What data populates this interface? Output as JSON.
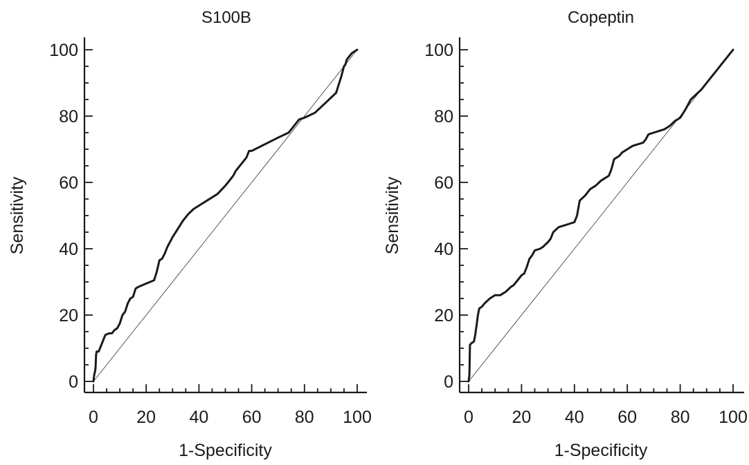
{
  "chart_data": [
    {
      "type": "line",
      "title": "S100B",
      "xlabel": "1-Specificity",
      "ylabel": "Sensitivity",
      "xlim": [
        0,
        100
      ],
      "ylim": [
        0,
        100
      ],
      "xticks": [
        0,
        20,
        40,
        60,
        80,
        100
      ],
      "yticks": [
        0,
        20,
        40,
        60,
        80,
        100
      ],
      "grid": false,
      "reference_line": [
        [
          0,
          0
        ],
        [
          100,
          100
        ]
      ],
      "series": [
        {
          "x": [
            0,
            0.3,
            0.6,
            0.8,
            1,
            1.2,
            2,
            3,
            3.5,
            4.5,
            6,
            7,
            8,
            9,
            10,
            11,
            12,
            13,
            14,
            15,
            16,
            17,
            20,
            23,
            24,
            25,
            26,
            27,
            28,
            29,
            30,
            32,
            34,
            36,
            38,
            42,
            46,
            47,
            50,
            53,
            54,
            56,
            58,
            59,
            60,
            65,
            70,
            74,
            75,
            78,
            80,
            84,
            88,
            92,
            94,
            95,
            95.5,
            96,
            97,
            98,
            99,
            100
          ],
          "y": [
            0,
            2,
            3,
            4,
            8,
            9,
            9,
            11,
            12,
            14,
            14.5,
            14.5,
            15.5,
            16,
            17.5,
            20,
            21,
            23.5,
            25,
            25.5,
            28,
            28.5,
            29.5,
            30.5,
            33,
            36.5,
            37,
            38.5,
            40.5,
            42,
            43.5,
            46,
            48.5,
            50.5,
            52,
            54,
            56,
            56.5,
            59,
            62,
            63.5,
            65.5,
            67.5,
            69.5,
            69.5,
            71.5,
            73.5,
            75,
            76,
            79,
            79.5,
            81,
            84,
            87,
            92,
            95,
            95.5,
            97,
            98,
            99,
            99.5,
            100
          ]
        }
      ]
    },
    {
      "type": "line",
      "title": "Copeptin",
      "xlabel": "1-Specificity",
      "ylabel": "Sensitivity",
      "xlim": [
        0,
        100
      ],
      "ylim": [
        0,
        100
      ],
      "xticks": [
        0,
        20,
        40,
        60,
        80,
        100
      ],
      "yticks": [
        0,
        20,
        40,
        60,
        80,
        100
      ],
      "grid": false,
      "reference_line": [
        [
          0,
          0
        ],
        [
          100,
          100
        ]
      ],
      "series": [
        {
          "x": [
            0,
            0.3,
            0.5,
            1,
            2,
            2.5,
            3,
            3.5,
            4,
            5,
            6,
            8,
            10,
            12,
            14,
            16,
            17,
            18,
            20,
            21,
            22,
            23,
            24,
            25,
            27,
            28,
            30,
            31,
            32,
            34,
            36,
            38,
            40,
            41,
            42,
            44,
            46,
            48,
            50,
            51,
            53,
            54,
            55,
            57,
            58,
            60,
            62,
            64,
            66,
            67,
            68,
            70,
            72,
            74,
            76,
            78,
            80,
            82,
            84,
            86,
            88,
            90,
            92,
            94,
            96,
            98,
            100
          ],
          "y": [
            0,
            2,
            11,
            11.5,
            12,
            14,
            17,
            20,
            22,
            22.5,
            23.5,
            25,
            26,
            26,
            27,
            28.5,
            29,
            30,
            32,
            32.5,
            34.5,
            37,
            38,
            39.5,
            40,
            40.5,
            42,
            43,
            45,
            46.5,
            47,
            47.5,
            48,
            50,
            54.5,
            56,
            58,
            59,
            60.5,
            61,
            62,
            64,
            67,
            68,
            69,
            70,
            71,
            71.5,
            72,
            73,
            74.5,
            75,
            75.5,
            76,
            77,
            78.5,
            79.5,
            82,
            85,
            86.5,
            88,
            90,
            92,
            94,
            96,
            98,
            100
          ]
        }
      ]
    }
  ]
}
